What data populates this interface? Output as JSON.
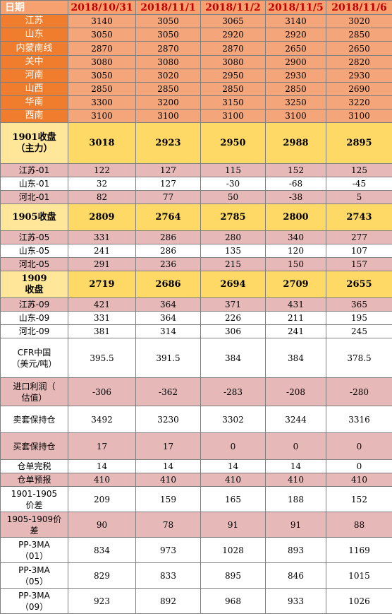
{
  "header": {
    "label": "日期",
    "dates": [
      "2018/10/31",
      "2018/11/1",
      "2018/11/2",
      "2018/11/5",
      "2018/11/6"
    ]
  },
  "rows": [
    {
      "label": "江苏",
      "values": [
        "3140",
        "3050",
        "3065",
        "3140",
        "3020"
      ]
    },
    {
      "label": "山东",
      "values": [
        "3050",
        "3050",
        "2920",
        "2920",
        "2850"
      ]
    },
    {
      "label": "内蒙南线",
      "values": [
        "2870",
        "2870",
        "2870",
        "2650",
        "2650"
      ]
    },
    {
      "label": "关中",
      "values": [
        "3080",
        "3080",
        "3080",
        "2900",
        "2820"
      ]
    },
    {
      "label": "河南",
      "values": [
        "3050",
        "3020",
        "2950",
        "2930",
        "2930"
      ]
    },
    {
      "label": "山西",
      "values": [
        "2850",
        "2850",
        "2850",
        "2850",
        "2690"
      ]
    },
    {
      "label": "华南",
      "values": [
        "3300",
        "3200",
        "3150",
        "3250",
        "3220"
      ]
    },
    {
      "label": "西南",
      "values": [
        "3100",
        "3100",
        "3100",
        "3100",
        "3100"
      ]
    },
    {
      "label": "1901收盘",
      "label2": "（主力）",
      "values": [
        "3018",
        "2923",
        "2950",
        "2988",
        "2895"
      ]
    },
    {
      "label": "江苏-01",
      "values": [
        "122",
        "127",
        "115",
        "152",
        "125"
      ]
    },
    {
      "label": "山东-01",
      "values": [
        "32",
        "127",
        "-30",
        "-68",
        "-45"
      ]
    },
    {
      "label": "河北-01",
      "values": [
        "82",
        "77",
        "50",
        "-38",
        "5"
      ]
    },
    {
      "label": "1905收盘",
      "values": [
        "2809",
        "2764",
        "2785",
        "2800",
        "2743"
      ]
    },
    {
      "label": "江苏-05",
      "values": [
        "331",
        "286",
        "280",
        "340",
        "277"
      ]
    },
    {
      "label": "山东-05",
      "values": [
        "241",
        "286",
        "135",
        "120",
        "107"
      ]
    },
    {
      "label": "河北-05",
      "values": [
        "291",
        "236",
        "215",
        "150",
        "157"
      ]
    },
    {
      "label": "1909",
      "label2": "收盘",
      "values": [
        "2719",
        "2686",
        "2694",
        "2709",
        "2655"
      ]
    },
    {
      "label": "江苏-09",
      "values": [
        "421",
        "364",
        "371",
        "431",
        "365"
      ]
    },
    {
      "label": "山东-09",
      "values": [
        "331",
        "364",
        "226",
        "211",
        "195"
      ]
    },
    {
      "label": "河北-09",
      "values": [
        "381",
        "314",
        "306",
        "241",
        "245"
      ]
    },
    {
      "label": "CFR中国",
      "label2": "（美元/吨）",
      "values": [
        "395.5",
        "391.5",
        "384",
        "384",
        "378.5"
      ]
    },
    {
      "label": "进口利润（",
      "label2": "估值）",
      "values": [
        "-306",
        "-362",
        "-283",
        "-208",
        "-280"
      ]
    },
    {
      "label": "卖套保持仓",
      "values": [
        "3492",
        "3230",
        "3302",
        "3244",
        "3316"
      ]
    },
    {
      "label": "买套保持仓",
      "values": [
        "17",
        "17",
        "0",
        "0",
        "0"
      ]
    },
    {
      "label": "仓单完税",
      "values": [
        "14",
        "14",
        "14",
        "14",
        "0"
      ]
    },
    {
      "label": "仓单预报",
      "values": [
        "410",
        "410",
        "410",
        "410",
        "410"
      ]
    },
    {
      "label": "1901-1905",
      "label2": "价差",
      "values": [
        "209",
        "159",
        "165",
        "188",
        "152"
      ]
    },
    {
      "label": "1905-1909价",
      "label2": "差",
      "values": [
        "90",
        "78",
        "91",
        "91",
        "88"
      ]
    },
    {
      "label": "PP-3MA",
      "label2": "（01）",
      "values": [
        "834",
        "973",
        "1028",
        "893",
        "1169"
      ]
    },
    {
      "label": "PP-3MA",
      "label2": "（05）",
      "values": [
        "829",
        "833",
        "895",
        "846",
        "1015"
      ]
    },
    {
      "label": "PP-3MA",
      "label2": "（09）",
      "values": [
        "923",
        "892",
        "968",
        "933",
        "1026"
      ]
    }
  ]
}
